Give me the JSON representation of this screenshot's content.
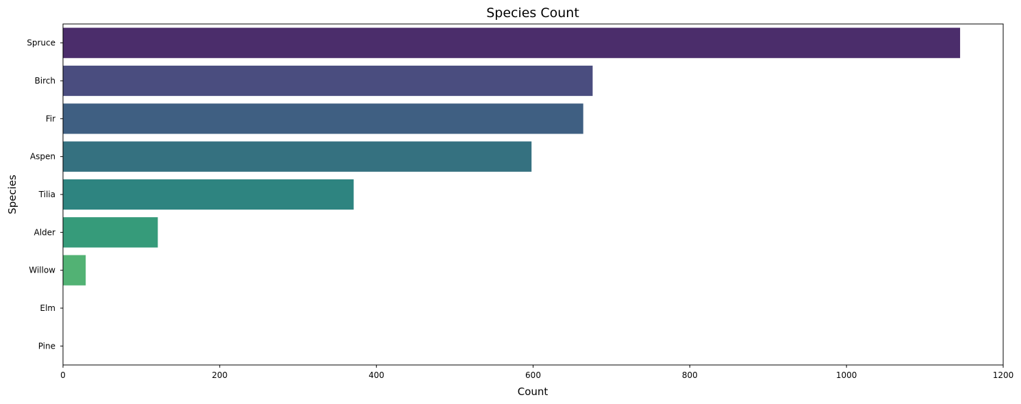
{
  "chart_data": {
    "type": "bar",
    "orientation": "horizontal",
    "title": "Species Count",
    "xlabel": "Count",
    "ylabel": "Species",
    "categories": [
      "Spruce",
      "Birch",
      "Fir",
      "Aspen",
      "Tilia",
      "Alder",
      "Willow",
      "Elm",
      "Pine"
    ],
    "values": [
      1145,
      676,
      664,
      598,
      371,
      121,
      29,
      0,
      0
    ],
    "colors": [
      "#4b2d6b",
      "#4a4d7f",
      "#3f5f82",
      "#357180",
      "#2e8480",
      "#369b7a",
      "#52b274",
      "#5fc06e",
      "#7ad151"
    ],
    "xlim": [
      0,
      1200
    ],
    "xticks": [
      "0",
      "200",
      "400",
      "600",
      "800",
      "1000",
      "1200"
    ],
    "xtick_values": [
      0,
      200,
      400,
      600,
      800,
      1000,
      1200
    ],
    "grid": false
  }
}
